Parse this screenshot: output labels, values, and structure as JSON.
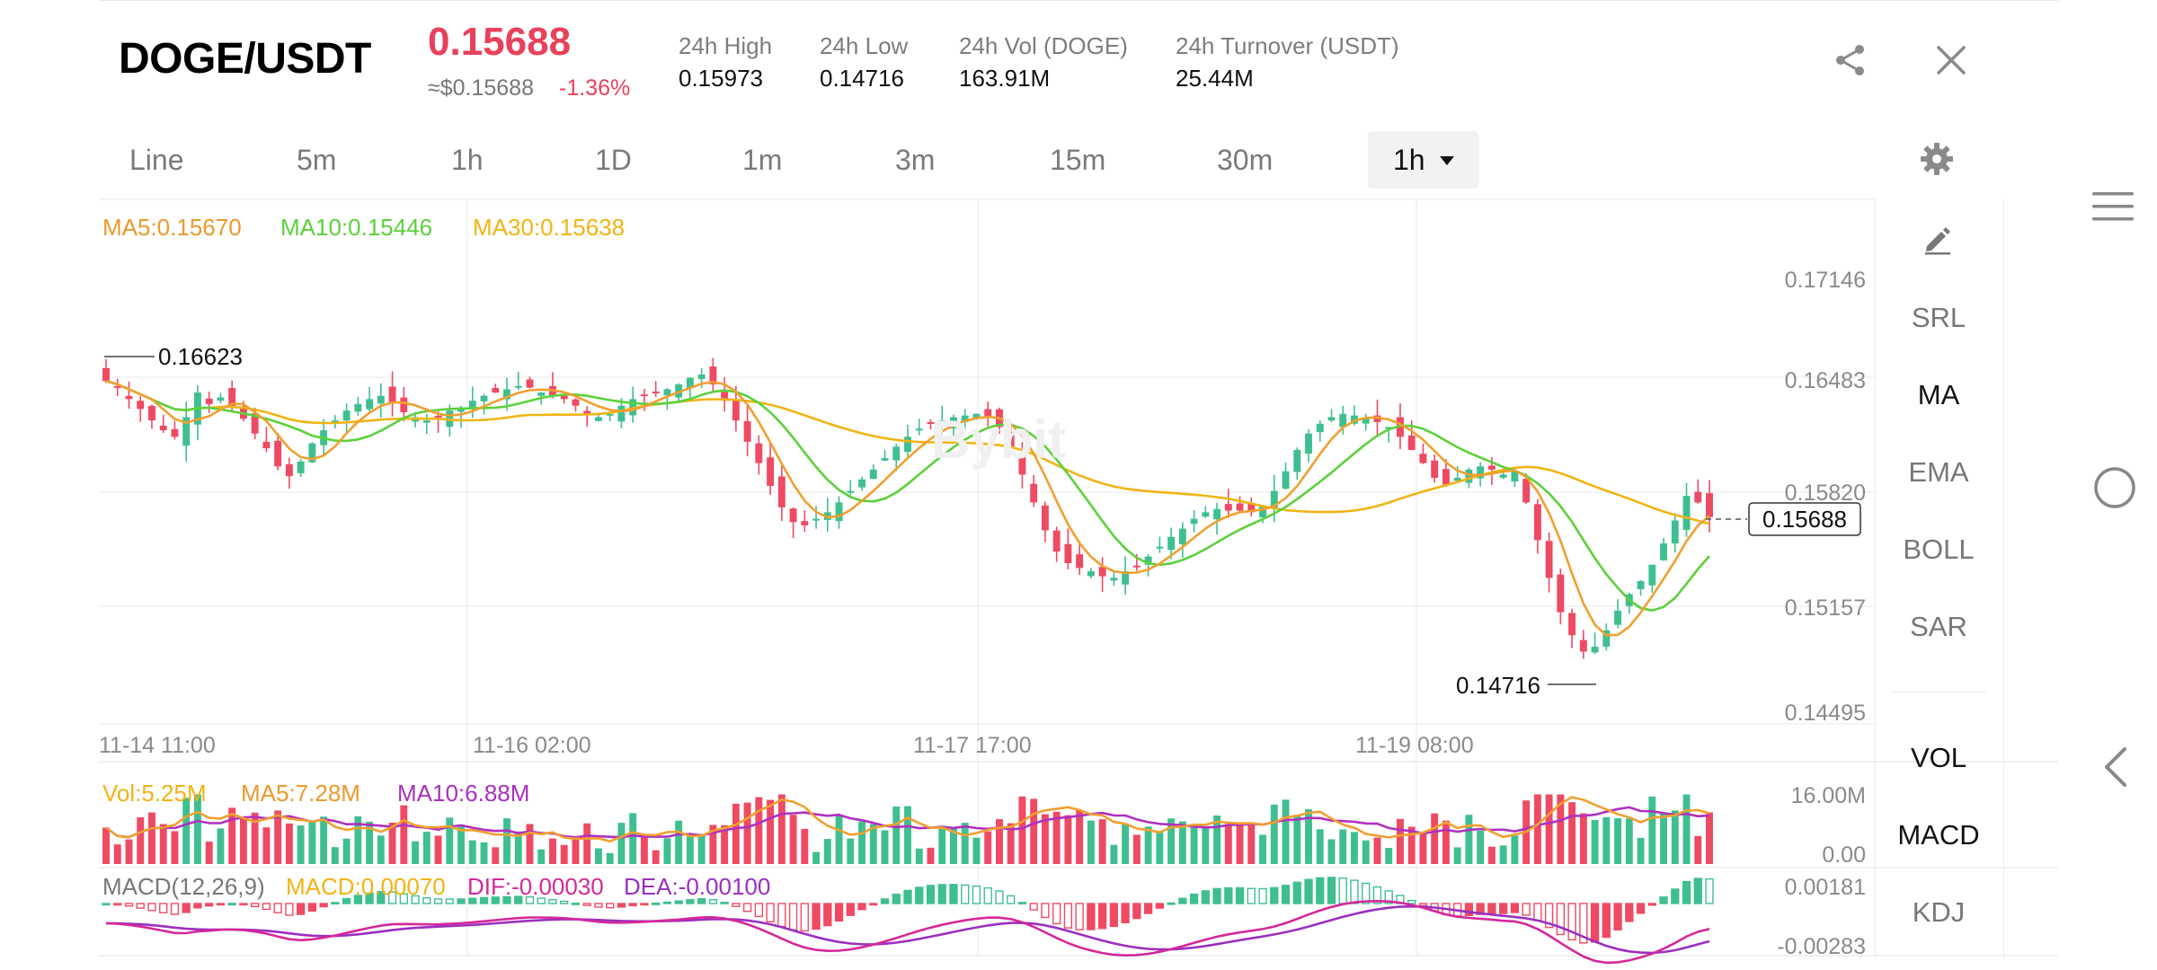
{
  "header": {
    "pair": "DOGE/USDT",
    "price": "0.15688",
    "fiat_price": "≈$0.15688",
    "change": "-1.36%",
    "stats": [
      {
        "label": "24h High",
        "value": "0.15973"
      },
      {
        "label": "24h Low",
        "value": "0.14716"
      },
      {
        "label": "24h Vol (DOGE)",
        "value": "163.91M"
      },
      {
        "label": "24h Turnover (USDT)",
        "value": "25.44M"
      }
    ],
    "share_icon": "share-icon",
    "close_icon": "close-icon"
  },
  "timeframes": {
    "tabs": [
      "Line",
      "5m",
      "1h",
      "1D",
      "1m",
      "3m",
      "15m",
      "30m"
    ],
    "selected": "1h",
    "settings_icon": "gear-icon"
  },
  "chart": {
    "ma_legend": {
      "ma5": "MA5:0.15670",
      "ma10": "MA10:0.15446",
      "ma30": "MA30:0.15638"
    },
    "y_axis": [
      "0.17146",
      "0.16483",
      "0.15820",
      "0.15157",
      "0.14495"
    ],
    "x_axis": [
      "11-14 11:00",
      "11-16 02:00",
      "11-17 17:00",
      "11-19 08:00"
    ],
    "high_marker": "0.16623",
    "low_marker": "0.14716",
    "current_price_tag": "0.15688",
    "watermark": "Bybit",
    "colors": {
      "up": "#3fbf8f",
      "down": "#ee4a63",
      "ma5": "#f0a030",
      "ma10": "#5cd13c",
      "ma30": "#f0b414",
      "dif": "#d4289a",
      "dea": "#9b2fbf"
    }
  },
  "volume": {
    "legend": {
      "vol": "Vol:5.25M",
      "ma5": "MA5:7.28M",
      "ma10": "MA10:6.88M"
    },
    "y_axis": [
      "16.00M",
      "0.00"
    ]
  },
  "macd": {
    "legend": {
      "title": "MACD(12,26,9)",
      "macd": "MACD:0.00070",
      "dif": "DIF:-0.00030",
      "dea": "DEA:-0.00100"
    },
    "y_axis": [
      "0.00181",
      "-0.00283"
    ]
  },
  "indicators": {
    "edit_icon": "pencil-icon",
    "main": [
      "SRL",
      "MA",
      "EMA",
      "BOLL",
      "SAR"
    ],
    "main_selected": "MA",
    "sub": [
      "VOL",
      "MACD",
      "KDJ"
    ],
    "sub_selected": [
      "VOL",
      "MACD"
    ]
  },
  "system_nav": {
    "menu_icon": "menu-icon",
    "home_icon": "home-circle-icon",
    "back_icon": "back-icon"
  },
  "chart_data": {
    "type": "candlestick",
    "interval": "1h",
    "series": [
      {
        "name": "MA5",
        "latest": 0.1567
      },
      {
        "name": "MA10",
        "latest": 0.15446
      },
      {
        "name": "MA30",
        "latest": 0.15638
      }
    ],
    "ylim": [
      0.14495,
      0.17146
    ],
    "x_ticks": [
      "11-14 11:00",
      "11-16 02:00",
      "11-17 17:00",
      "11-19 08:00"
    ],
    "visible_high": 0.16623,
    "visible_low": 0.14716,
    "last_price": 0.15688,
    "volume": {
      "latest": 5.25,
      "ma5": 7.28,
      "ma10": 6.88,
      "unit": "M",
      "ylim": [
        0,
        16
      ]
    },
    "macd": {
      "params": [
        12,
        26,
        9
      ],
      "macd": 0.0007,
      "dif": -0.0003,
      "dea": -0.001,
      "ylim": [
        -0.00283,
        0.00181
      ]
    },
    "closes": [
      0.1652,
      0.1648,
      0.1641,
      0.1635,
      0.1628,
      0.1622,
      0.1618,
      0.163,
      0.1645,
      0.1638,
      0.1642,
      0.1636,
      0.1629,
      0.162,
      0.1611,
      0.16,
      0.1594,
      0.1603,
      0.1614,
      0.1622,
      0.1628,
      0.1634,
      0.1638,
      0.1641,
      0.1643,
      0.1639,
      0.1633,
      0.163,
      0.1628,
      0.163,
      0.1634,
      0.1636,
      0.164,
      0.1643,
      0.1645,
      0.1647,
      0.1649,
      0.1648,
      0.1645,
      0.1643,
      0.1641,
      0.1637,
      0.1632,
      0.163,
      0.1632,
      0.1637,
      0.1641,
      0.1643,
      0.1645,
      0.1647,
      0.165,
      0.1654,
      0.1656,
      0.165,
      0.164,
      0.1628,
      0.1615,
      0.1602,
      0.1588,
      0.1575,
      0.1566,
      0.1564,
      0.1568,
      0.1572,
      0.1578,
      0.1585,
      0.1592,
      0.1598,
      0.1605,
      0.1612,
      0.1618,
      0.1623,
      0.1626,
      0.1628,
      0.163,
      0.1631,
      0.1632,
      0.163,
      0.1624,
      0.1612,
      0.1595,
      0.1578,
      0.1561,
      0.1548,
      0.1541,
      0.1538,
      0.1536,
      0.1533,
      0.1532,
      0.1536,
      0.1539,
      0.1545,
      0.1551,
      0.1557,
      0.1562,
      0.1568,
      0.1572,
      0.1574,
      0.1573,
      0.1573,
      0.1572,
      0.1576,
      0.1585,
      0.1597,
      0.161,
      0.162,
      0.1626,
      0.163,
      0.1632,
      0.1631,
      0.1629,
      0.1627,
      0.1624,
      0.1618,
      0.161,
      0.1602,
      0.1593,
      0.1589,
      0.1593,
      0.1598,
      0.16,
      0.1598,
      0.1595,
      0.1597,
      0.1578,
      0.1555,
      0.1532,
      0.1511,
      0.1497,
      0.1487,
      0.149,
      0.15,
      0.1512,
      0.1522,
      0.153,
      0.154,
      0.1553,
      0.1567,
      0.1582,
      0.1578,
      0.1569
    ]
  }
}
